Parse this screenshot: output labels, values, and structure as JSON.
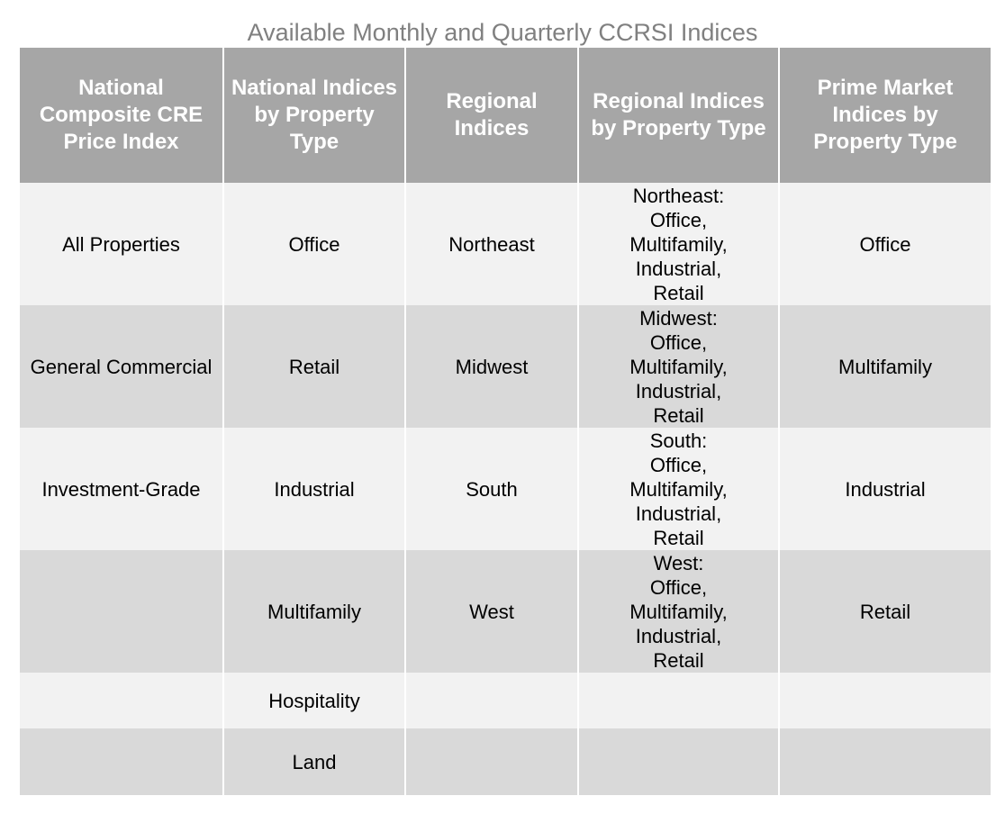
{
  "title": "Available Monthly and Quarterly CCRSI Indices",
  "headers": [
    "National Composite CRE Price Index",
    "National Indices by Property Type",
    "Regional Indices",
    "Regional Indices by Property Type",
    "Prime Market Indices by Property Type"
  ],
  "rows": [
    [
      "All Properties",
      "Office",
      "Northeast",
      "Northeast:\nOffice,\nMultifamily,\nIndustrial,\nRetail",
      "Office"
    ],
    [
      "General Commercial",
      "Retail",
      "Midwest",
      "Midwest:\nOffice,\nMultifamily,\nIndustrial,\nRetail",
      "Multifamily"
    ],
    [
      "Investment-Grade",
      "Industrial",
      "South",
      "South:\nOffice,\nMultifamily,\nIndustrial,\nRetail",
      "Industrial"
    ],
    [
      "",
      "Multifamily",
      "West",
      "West:\nOffice,\nMultifamily,\nIndustrial,\nRetail",
      "Retail"
    ],
    [
      "",
      "Hospitality",
      "",
      "",
      ""
    ],
    [
      "",
      "Land",
      "",
      "",
      ""
    ]
  ]
}
